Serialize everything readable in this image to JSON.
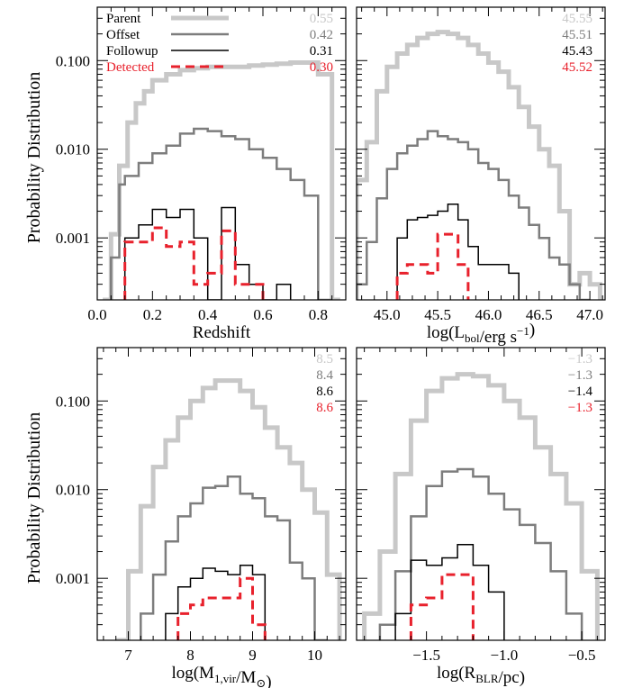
{
  "figure": {
    "ylabel": "Probability Distribution",
    "legend": [
      "Parent",
      "Offset",
      "Followup",
      "Detected"
    ],
    "series_colors": {
      "Parent": "#c8c8c8",
      "Offset": "#7d7d7d",
      "Followup": "#000000",
      "Detected": "#e8212c"
    }
  },
  "chart_data": [
    {
      "type": "line",
      "panel": "top-left",
      "xlabel": "Redshift",
      "xlim": [
        0.0,
        0.9
      ],
      "xticks": [
        0.0,
        0.2,
        0.4,
        0.6,
        0.8
      ],
      "xtick_labels": [
        "0.0",
        "0.2",
        "0.4",
        "0.6",
        "0.8"
      ],
      "yscale": "log",
      "ylim": [
        0.0002,
        0.4
      ],
      "yticks": [
        0.001,
        0.01,
        0.1
      ],
      "ytick_labels": [
        "0.001",
        "0.010",
        "0.100"
      ],
      "legend": [
        "Parent",
        "Offset",
        "Followup",
        "Detected"
      ],
      "stats": [
        "0.55",
        "0.42",
        "0.31",
        "0.30"
      ],
      "series": [
        {
          "name": "Parent",
          "edges": [
            0.02,
            0.05,
            0.08,
            0.11,
            0.14,
            0.17,
            0.2,
            0.25,
            0.3,
            0.35,
            0.4,
            0.45,
            0.5,
            0.55,
            0.6,
            0.65,
            0.7,
            0.75,
            0.8,
            0.85,
            0.88
          ],
          "values": [
            0.0002,
            0.0011,
            0.0065,
            0.02,
            0.033,
            0.045,
            0.06,
            0.07,
            0.078,
            0.082,
            0.085,
            0.085,
            0.085,
            0.088,
            0.09,
            0.092,
            0.095,
            0.095,
            0.07,
            0.0002
          ]
        },
        {
          "name": "Offset",
          "edges": [
            0.05,
            0.08,
            0.1,
            0.15,
            0.2,
            0.25,
            0.3,
            0.35,
            0.4,
            0.45,
            0.5,
            0.55,
            0.6,
            0.65,
            0.7,
            0.75,
            0.8,
            0.85
          ],
          "values": [
            0.0006,
            0.004,
            0.005,
            0.007,
            0.009,
            0.011,
            0.015,
            0.017,
            0.016,
            0.014,
            0.013,
            0.01,
            0.008,
            0.006,
            0.0045,
            0.003,
            0.0002
          ]
        },
        {
          "name": "Followup",
          "edges": [
            0.1,
            0.15,
            0.2,
            0.25,
            0.3,
            0.35,
            0.4,
            0.45,
            0.5,
            0.55,
            0.6,
            0.65,
            0.7
          ],
          "values": [
            0.001,
            0.0014,
            0.0021,
            0.0017,
            0.0021,
            0.001,
            0.0002,
            0.0022,
            0.0005,
            0.0003,
            0.0002,
            0.0003
          ]
        },
        {
          "name": "Detected",
          "edges": [
            0.1,
            0.15,
            0.2,
            0.25,
            0.3,
            0.35,
            0.4,
            0.45,
            0.5,
            0.55,
            0.6
          ],
          "values": [
            0.0009,
            0.0009,
            0.0013,
            0.0008,
            0.0009,
            0.0003,
            0.0004,
            0.0012,
            0.0003,
            0.0003
          ]
        }
      ]
    },
    {
      "type": "line",
      "panel": "top-right",
      "xlabel": "log(Lbol/erg s−1)",
      "xlim": [
        44.7,
        47.15
      ],
      "xticks": [
        45.0,
        45.5,
        46.0,
        46.5,
        47.0
      ],
      "xtick_labels": [
        "45.0",
        "45.5",
        "46.0",
        "46.5",
        "47.0"
      ],
      "yscale": "log",
      "ylim": [
        0.0002,
        0.4
      ],
      "stats": [
        "45.55",
        "45.51",
        "45.43",
        "45.52"
      ],
      "series": [
        {
          "name": "Parent",
          "edges": [
            44.7,
            44.8,
            44.9,
            45.0,
            45.1,
            45.2,
            45.3,
            45.4,
            45.5,
            45.6,
            45.7,
            45.8,
            45.9,
            46.0,
            46.1,
            46.2,
            46.3,
            46.4,
            46.5,
            46.6,
            46.7,
            46.8,
            46.9,
            47.0,
            47.1
          ],
          "values": [
            0.0045,
            0.012,
            0.045,
            0.085,
            0.12,
            0.15,
            0.18,
            0.2,
            0.21,
            0.2,
            0.18,
            0.15,
            0.12,
            0.095,
            0.075,
            0.05,
            0.03,
            0.018,
            0.01,
            0.0065,
            0.002,
            0.0003,
            0.0004,
            0.0003
          ]
        },
        {
          "name": "Offset",
          "edges": [
            44.7,
            44.8,
            44.9,
            45.0,
            45.1,
            45.2,
            45.3,
            45.4,
            45.5,
            45.6,
            45.7,
            45.8,
            45.9,
            46.0,
            46.1,
            46.2,
            46.3,
            46.4,
            46.5,
            46.6,
            46.7,
            46.8,
            46.9,
            47.0
          ],
          "values": [
            0.0003,
            0.0009,
            0.0028,
            0.006,
            0.009,
            0.011,
            0.013,
            0.016,
            0.014,
            0.013,
            0.012,
            0.01,
            0.007,
            0.006,
            0.0045,
            0.003,
            0.0022,
            0.0014,
            0.001,
            0.0006,
            0.0005,
            0.0003,
            0.0002
          ]
        },
        {
          "name": "Followup",
          "edges": [
            45.1,
            45.2,
            45.3,
            45.4,
            45.5,
            45.6,
            45.7,
            45.8,
            45.9,
            46.0,
            46.1,
            46.2,
            46.3
          ],
          "values": [
            0.001,
            0.0016,
            0.0017,
            0.0018,
            0.002,
            0.0024,
            0.0016,
            0.0008,
            0.0005,
            0.0005,
            0.0005,
            0.0004
          ]
        },
        {
          "name": "Detected",
          "edges": [
            45.1,
            45.2,
            45.3,
            45.4,
            45.5,
            45.6,
            45.7,
            45.8
          ],
          "values": [
            0.0004,
            0.0005,
            0.0005,
            0.0004,
            0.0011,
            0.0011,
            0.0005
          ]
        }
      ]
    },
    {
      "type": "line",
      "panel": "bottom-left",
      "xlabel": "log(M1,vir/M⊙)",
      "xlim": [
        6.5,
        10.5
      ],
      "xticks": [
        7,
        8,
        9,
        10
      ],
      "xtick_labels": [
        "7",
        "8",
        "9",
        "10"
      ],
      "yscale": "log",
      "ylim": [
        0.0002,
        0.4
      ],
      "stats": [
        "8.5",
        "8.4",
        "8.6",
        "8.6"
      ],
      "series": [
        {
          "name": "Parent",
          "edges": [
            6.8,
            7.0,
            7.2,
            7.4,
            7.6,
            7.8,
            8.0,
            8.2,
            8.4,
            8.6,
            8.8,
            9.0,
            9.2,
            9.4,
            9.6,
            9.8,
            10.0,
            10.2,
            10.4
          ],
          "values": [
            0.0002,
            0.0012,
            0.0065,
            0.018,
            0.036,
            0.065,
            0.1,
            0.14,
            0.17,
            0.17,
            0.13,
            0.085,
            0.05,
            0.03,
            0.02,
            0.01,
            0.0055,
            0.0011
          ]
        },
        {
          "name": "Offset",
          "edges": [
            7.2,
            7.4,
            7.6,
            7.8,
            8.0,
            8.2,
            8.4,
            8.6,
            8.8,
            9.0,
            9.2,
            9.4,
            9.6,
            9.8,
            10.0,
            10.2
          ],
          "values": [
            0.0004,
            0.0011,
            0.0026,
            0.005,
            0.007,
            0.0105,
            0.011,
            0.014,
            0.009,
            0.008,
            0.005,
            0.0045,
            0.0015,
            0.001,
            0.0002
          ]
        },
        {
          "name": "Followup",
          "edges": [
            7.6,
            7.8,
            8.0,
            8.2,
            8.4,
            8.6,
            8.8,
            9.0,
            9.2
          ],
          "values": [
            0.0004,
            0.0008,
            0.001,
            0.0013,
            0.0012,
            0.0011,
            0.0014,
            0.0011
          ]
        },
        {
          "name": "Detected",
          "edges": [
            7.8,
            8.0,
            8.2,
            8.4,
            8.6,
            8.8,
            9.0,
            9.2
          ],
          "values": [
            0.0004,
            0.0005,
            0.0006,
            0.0006,
            0.0006,
            0.001,
            0.0003
          ]
        }
      ]
    },
    {
      "type": "line",
      "panel": "bottom-right",
      "xlabel": "log(RBLR/pc)",
      "xlim": [
        -1.95,
        -0.35
      ],
      "xticks": [
        -1.5,
        -1.0,
        -0.5
      ],
      "xtick_labels": [
        "−1.5",
        "−1.0",
        "−0.5"
      ],
      "yscale": "log",
      "ylim": [
        0.0002,
        0.4
      ],
      "stats": [
        "−1.3",
        "−1.3",
        "−1.4",
        "−1.3"
      ],
      "series": [
        {
          "name": "Parent",
          "edges": [
            -1.9,
            -1.8,
            -1.7,
            -1.6,
            -1.5,
            -1.4,
            -1.3,
            -1.2,
            -1.1,
            -1.0,
            -0.9,
            -0.8,
            -0.7,
            -0.6,
            -0.5,
            -0.4
          ],
          "values": [
            0.0004,
            0.002,
            0.015,
            0.06,
            0.13,
            0.18,
            0.2,
            0.19,
            0.15,
            0.1,
            0.065,
            0.03,
            0.015,
            0.007,
            0.0012
          ]
        },
        {
          "name": "Offset",
          "edges": [
            -1.8,
            -1.7,
            -1.6,
            -1.5,
            -1.4,
            -1.3,
            -1.2,
            -1.1,
            -1.0,
            -0.9,
            -0.8,
            -0.7,
            -0.6,
            -0.5
          ],
          "values": [
            0.0003,
            0.0012,
            0.005,
            0.011,
            0.016,
            0.017,
            0.014,
            0.009,
            0.006,
            0.004,
            0.0025,
            0.0012,
            0.0004
          ]
        },
        {
          "name": "Followup",
          "edges": [
            -1.7,
            -1.6,
            -1.5,
            -1.4,
            -1.3,
            -1.2,
            -1.1,
            -1.0
          ],
          "values": [
            0.0004,
            0.0016,
            0.0014,
            0.0017,
            0.0024,
            0.0014,
            0.0007
          ]
        },
        {
          "name": "Detected",
          "edges": [
            -1.6,
            -1.5,
            -1.4,
            -1.3,
            -1.2
          ],
          "values": [
            0.0005,
            0.0006,
            0.0011,
            0.0011
          ]
        }
      ]
    }
  ]
}
